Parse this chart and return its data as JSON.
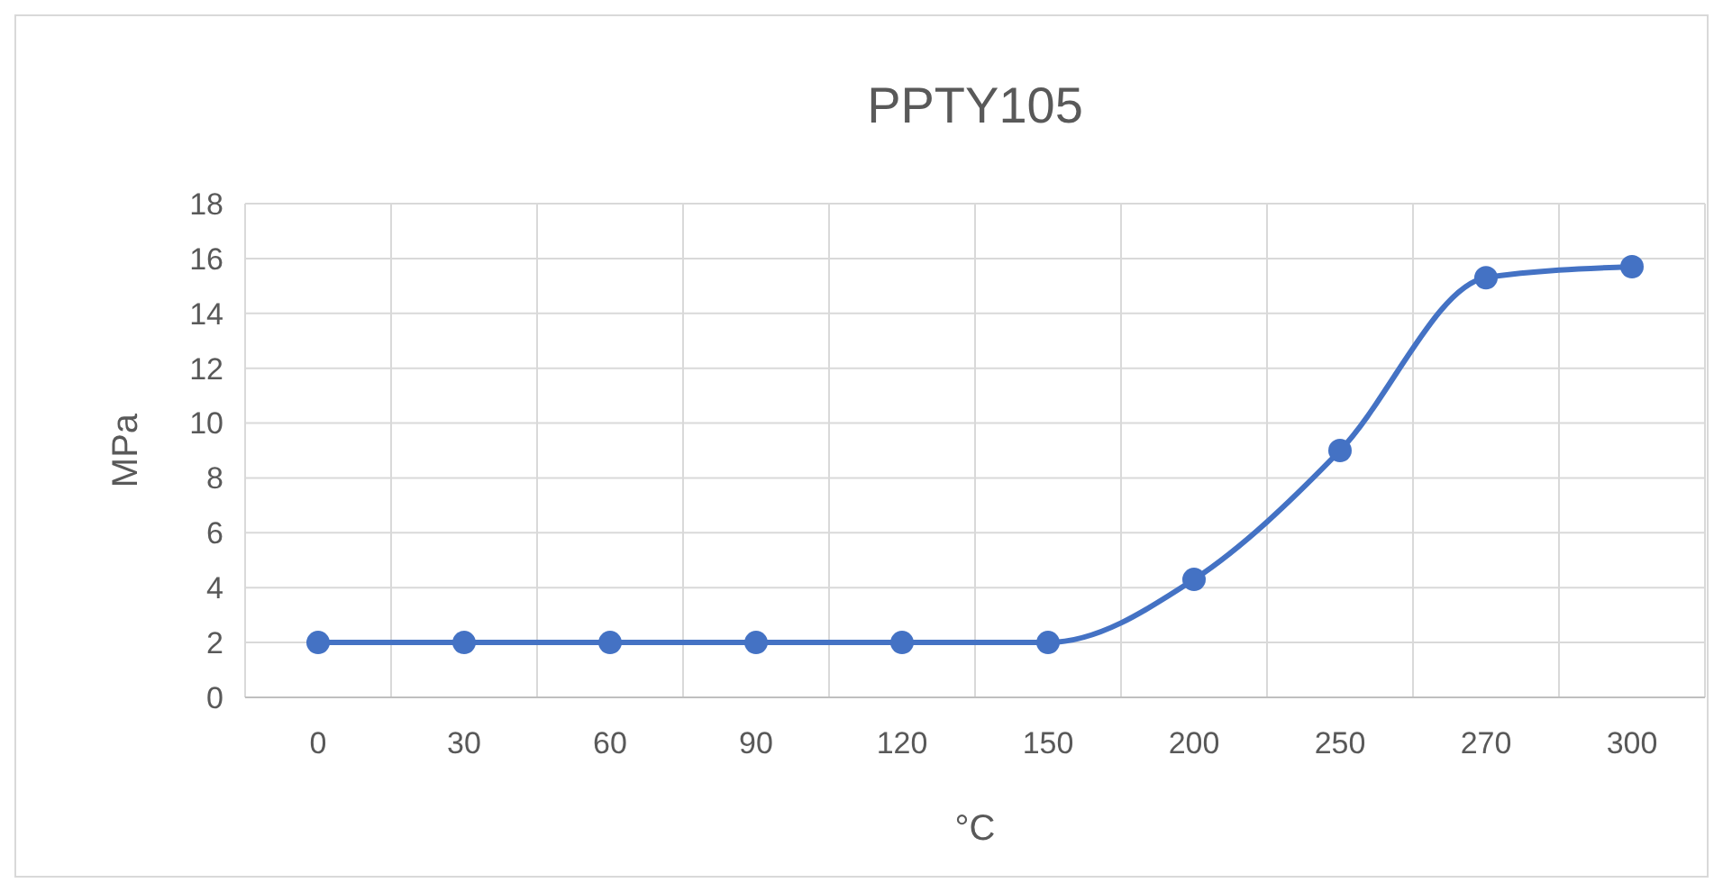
{
  "chart_data": {
    "type": "line",
    "title": "PPTY105",
    "xlabel": "°C",
    "ylabel": "MPa",
    "categories": [
      "0",
      "30",
      "60",
      "90",
      "120",
      "150",
      "200",
      "250",
      "270",
      "300"
    ],
    "series": [
      {
        "color": "#4472c4",
        "values": [
          2,
          2,
          2,
          2,
          2,
          2,
          4.3,
          9,
          15.3,
          15.7
        ]
      }
    ],
    "ylim": [
      0,
      18
    ],
    "yticks": [
      0,
      2,
      4,
      6,
      8,
      10,
      12,
      14,
      16,
      18
    ],
    "grid": true,
    "marker": "circle",
    "line_style": "solid"
  }
}
